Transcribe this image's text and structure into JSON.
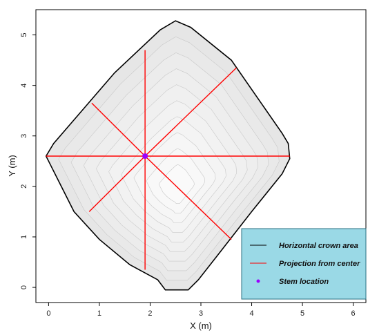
{
  "chart_data": {
    "type": "scatter",
    "xlabel": "X (m)",
    "ylabel": "Y (m)",
    "xlim": [
      -0.25,
      6.25
    ],
    "ylim": [
      -0.3,
      5.5
    ],
    "xticks": [
      0,
      1,
      2,
      3,
      4,
      5,
      6
    ],
    "yticks": [
      0,
      1,
      2,
      3,
      4,
      5
    ],
    "grid": false,
    "stem_location": {
      "x": 1.9,
      "y": 2.6
    },
    "crown_outline": [
      [
        -0.05,
        2.6
      ],
      [
        0.1,
        2.85
      ],
      [
        1.3,
        4.25
      ],
      [
        2.2,
        5.1
      ],
      [
        2.5,
        5.28
      ],
      [
        2.8,
        5.15
      ],
      [
        3.6,
        4.5
      ],
      [
        4.6,
        3.05
      ],
      [
        4.72,
        2.85
      ],
      [
        4.75,
        2.55
      ],
      [
        4.6,
        2.25
      ],
      [
        4.0,
        1.5
      ],
      [
        3.3,
        0.6
      ],
      [
        2.95,
        0.15
      ],
      [
        2.75,
        -0.05
      ],
      [
        2.3,
        -0.05
      ],
      [
        2.15,
        0.15
      ],
      [
        1.6,
        0.45
      ],
      [
        1.0,
        0.95
      ],
      [
        0.5,
        1.5
      ],
      [
        0.0,
        2.5
      ]
    ],
    "projections": [
      {
        "x": [
          1.9,
          1.9
        ],
        "y": [
          2.6,
          4.7
        ]
      },
      {
        "x": [
          1.9,
          3.7
        ],
        "y": [
          2.6,
          4.35
        ]
      },
      {
        "x": [
          1.9,
          4.75
        ],
        "y": [
          2.6,
          2.6
        ]
      },
      {
        "x": [
          1.9,
          3.6
        ],
        "y": [
          2.6,
          0.95
        ]
      },
      {
        "x": [
          1.9,
          1.9
        ],
        "y": [
          2.6,
          0.35
        ]
      },
      {
        "x": [
          1.9,
          0.8
        ],
        "y": [
          2.6,
          1.5
        ]
      },
      {
        "x": [
          1.9,
          -0.05
        ],
        "y": [
          2.6,
          2.6
        ]
      },
      {
        "x": [
          1.9,
          0.85
        ],
        "y": [
          2.6,
          3.65
        ]
      }
    ],
    "legend": {
      "placement": "bottom-right",
      "items": [
        {
          "label": "Horizontal crown area",
          "kind": "line",
          "color": "#000000"
        },
        {
          "label": "Projection from center",
          "kind": "line",
          "color": "#ff0000"
        },
        {
          "label": "Stem location",
          "kind": "point",
          "color": "#9b00ff"
        }
      ]
    },
    "colors": {
      "crown_fill": "#e6e6e6",
      "crown_outline": "#000000",
      "projection": "#ff0000",
      "stem": "#9b00ff",
      "legend_bg": "#9ad9e6"
    }
  }
}
